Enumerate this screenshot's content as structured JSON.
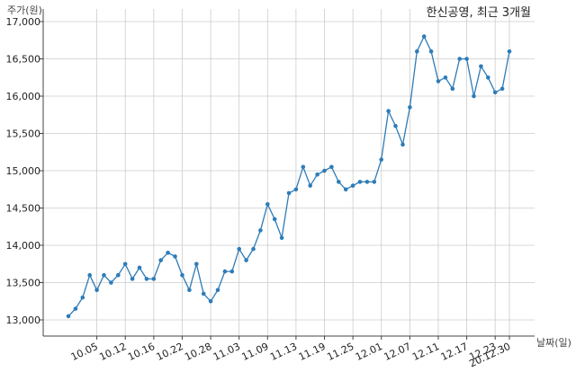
{
  "chart_data": {
    "type": "line",
    "title": "한신공영, 최근 3개월",
    "xlabel": "날짜(일)",
    "ylabel": "주가(원)",
    "x_tick_labels": [
      "10.05",
      "10.12",
      "10.16",
      "10.22",
      "10.28",
      "11.03",
      "11.09",
      "11.13",
      "11.19",
      "11.25",
      "12.01",
      "12.07",
      "12.11",
      "12.17",
      "12.23",
      "20.12.30"
    ],
    "y_tick_labels": [
      "13,000",
      "13,500",
      "14,000",
      "14,500",
      "15,000",
      "15,500",
      "16,000",
      "16,500",
      "17,000"
    ],
    "ylim": [
      12850,
      17000
    ],
    "grid": true,
    "line_color": "#2e7cb8",
    "series": [
      {
        "values": [
          13050,
          13150,
          13300,
          13600,
          13400,
          13600,
          13500,
          13600,
          13750,
          13550,
          13700,
          13550,
          13550,
          13800,
          13900,
          13850,
          13600,
          13400,
          13750,
          13350,
          13250,
          13400,
          13650,
          13650,
          13950,
          13800,
          13950,
          14200,
          14550,
          14350,
          14100,
          14700,
          14750,
          15050,
          14800,
          14950,
          15000,
          15050,
          14850,
          14750,
          14800,
          14850,
          14850,
          14850,
          15150,
          15800,
          15600,
          15350,
          15850,
          16600,
          16800,
          16600,
          16200,
          16250,
          16100,
          16500,
          16500,
          16000,
          16400,
          16250,
          16050,
          16100,
          16600
        ]
      }
    ]
  }
}
